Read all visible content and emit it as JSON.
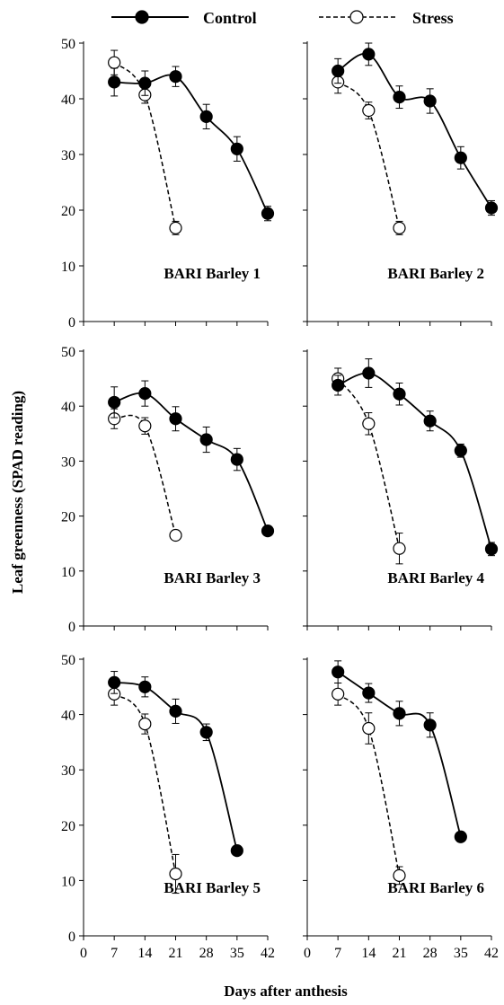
{
  "figure": {
    "legend": {
      "control_label": "Control",
      "stress_label": "Stress"
    },
    "ylabel": "Leaf greenness (SPAD reading)",
    "xlabel": "Days after anthesis"
  },
  "chart_data": {
    "type": "line",
    "ylabel": "Leaf greenness (SPAD reading)",
    "xlabel": "Days after anthesis",
    "legend_position": "top",
    "x_ticks": [
      0,
      7,
      14,
      21,
      28,
      35,
      42
    ],
    "y_ticks": [
      0,
      10,
      20,
      30,
      40,
      50
    ],
    "xlim": [
      0,
      42
    ],
    "ylim": [
      0,
      50
    ],
    "grid": false,
    "colors": {
      "control": "#000000",
      "stress": "#ffffff",
      "line": "#000000"
    },
    "panels": [
      {
        "title": "BARI Barley 1",
        "series": [
          {
            "name": "Control",
            "style": "solid-filled",
            "x": [
              7,
              14,
              21,
              28,
              35,
              42
            ],
            "y": [
              43.0,
              42.8,
              44.0,
              36.8,
              31.0,
              19.4
            ],
            "err": [
              2.5,
              2.2,
              1.8,
              2.2,
              2.2,
              1.3
            ]
          },
          {
            "name": "Stress",
            "style": "dashed-open",
            "x": [
              7,
              14,
              21
            ],
            "y": [
              46.5,
              40.7,
              16.8
            ],
            "err": [
              2.2,
              1.5,
              1.2
            ]
          }
        ]
      },
      {
        "title": "BARI Barley 2",
        "series": [
          {
            "name": "Control",
            "style": "solid-filled",
            "x": [
              7,
              14,
              21,
              28,
              35,
              42
            ],
            "y": [
              45.0,
              48.0,
              40.3,
              39.6,
              29.4,
              20.4
            ],
            "err": [
              2.2,
              2.0,
              2.0,
              2.2,
              2.0,
              1.3
            ]
          },
          {
            "name": "Stress",
            "style": "dashed-open",
            "x": [
              7,
              14,
              21
            ],
            "y": [
              43.0,
              37.9,
              16.8
            ],
            "err": [
              2.0,
              1.5,
              1.2
            ]
          }
        ]
      },
      {
        "title": "BARI Barley 3",
        "series": [
          {
            "name": "Control",
            "style": "solid-filled",
            "x": [
              7,
              14,
              21,
              28,
              35,
              42
            ],
            "y": [
              40.7,
              42.3,
              37.7,
              33.9,
              30.3,
              17.3
            ],
            "err": [
              2.8,
              2.3,
              2.2,
              2.3,
              2.0,
              0.8
            ]
          },
          {
            "name": "Stress",
            "style": "dashed-open",
            "x": [
              7,
              14,
              21
            ],
            "y": [
              37.7,
              36.4,
              16.5
            ],
            "err": [
              1.8,
              1.5,
              0.8
            ]
          }
        ]
      },
      {
        "title": "BARI Barley 4",
        "series": [
          {
            "name": "Control",
            "style": "solid-filled",
            "x": [
              7,
              14,
              21,
              28,
              35,
              42
            ],
            "y": [
              43.8,
              46.0,
              42.2,
              37.3,
              31.9,
              14.0
            ],
            "err": [
              1.8,
              2.6,
              2.0,
              1.8,
              1.2,
              1.2
            ]
          },
          {
            "name": "Stress",
            "style": "dashed-open",
            "x": [
              7,
              14,
              21
            ],
            "y": [
              45.0,
              36.8,
              14.1
            ],
            "err": [
              1.9,
              2.0,
              2.8
            ]
          }
        ]
      },
      {
        "title": "BARI Barley 5",
        "series": [
          {
            "name": "Control",
            "style": "solid-filled",
            "x": [
              7,
              14,
              21,
              28,
              35
            ],
            "y": [
              45.8,
              45.0,
              40.6,
              36.8,
              15.4
            ],
            "err": [
              2.0,
              1.8,
              2.2,
              1.5,
              0.6
            ]
          },
          {
            "name": "Stress",
            "style": "dashed-open",
            "x": [
              7,
              14,
              21
            ],
            "y": [
              43.7,
              38.3,
              11.2
            ],
            "err": [
              2.0,
              1.8,
              3.5
            ]
          }
        ]
      },
      {
        "title": "BARI Barley 6",
        "series": [
          {
            "name": "Control",
            "style": "solid-filled",
            "x": [
              7,
              14,
              21,
              28,
              35
            ],
            "y": [
              47.7,
              43.9,
              40.2,
              38.1,
              17.9
            ],
            "err": [
              2.0,
              1.7,
              2.2,
              2.2,
              0.6
            ]
          },
          {
            "name": "Stress",
            "style": "dashed-open",
            "x": [
              7,
              14,
              21
            ],
            "y": [
              43.7,
              37.5,
              10.9
            ],
            "err": [
              2.0,
              2.8,
              1.6
            ]
          }
        ]
      }
    ]
  }
}
